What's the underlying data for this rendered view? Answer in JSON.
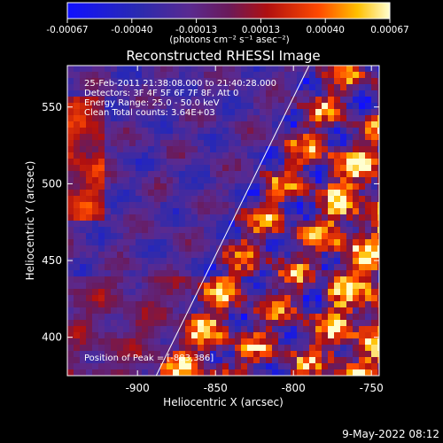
{
  "chart_data": {
    "type": "heatmap",
    "title": "Reconstructed RHESSI Image",
    "xlabel": "Heliocentric X (arcsec)",
    "ylabel": "Heliocentric Y (arcsec)",
    "xlim": [
      -945,
      -745
    ],
    "ylim": [
      375,
      577
    ],
    "x_ticks": [
      -900,
      -850,
      -800,
      -750
    ],
    "y_ticks": [
      400,
      450,
      500,
      550
    ],
    "colorbar": {
      "ticks": [
        "-0.00067",
        "-0.00040",
        "-0.00013",
        "0.00013",
        "0.00040",
        "0.00067"
      ],
      "units_label": "(photons cm⁻² s⁻¹ asec⁻²)",
      "range": [
        -0.00067,
        0.00067
      ]
    },
    "annotations": [
      "25-Feb-2011 21:38:08.000 to 21:40:28.000",
      "Detectors: 3F 4F 5F 6F 7F 8F, Att 0",
      "Energy Range: 25.0 - 50.0 keV",
      "Clean     Total counts: 3.64E+03"
    ],
    "peak_label": "Position of Peak = [-883,386]",
    "limb_line": [
      {
        "x": -888,
        "y": 375
      },
      {
        "x": -790,
        "y": 577
      }
    ]
  },
  "footer_timestamp": "9-May-2022 08:12"
}
